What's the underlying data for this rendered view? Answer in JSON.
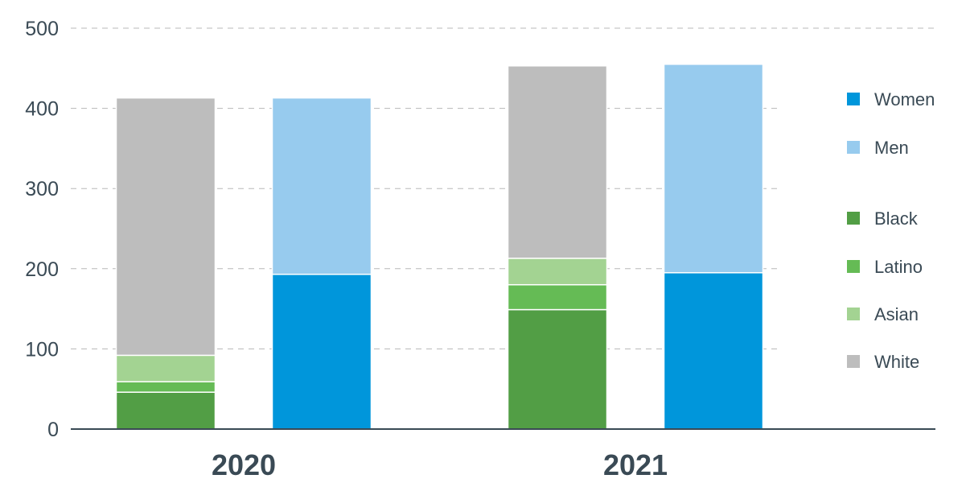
{
  "chart_data": {
    "type": "bar",
    "stacked": true,
    "categories": [
      "2020",
      "2021"
    ],
    "ylim": [
      0,
      500
    ],
    "yticks": [
      0,
      100,
      200,
      300,
      400,
      500
    ],
    "grid": true,
    "legend_position": "right",
    "groups": [
      {
        "stack": "race",
        "series": [
          {
            "name": "Black",
            "color": "#529e45",
            "values": [
              46,
              149
            ]
          },
          {
            "name": "Latino",
            "color": "#65bb55",
            "values": [
              13,
              31
            ]
          },
          {
            "name": "Asian",
            "color": "#a3d392",
            "values": [
              33,
              33
            ]
          },
          {
            "name": "White",
            "color": "#bdbdbd",
            "values": [
              321,
              240
            ]
          }
        ]
      },
      {
        "stack": "gender",
        "series": [
          {
            "name": "Women",
            "color": "#0096db",
            "values": [
              193,
              195
            ]
          },
          {
            "name": "Men",
            "color": "#97cbee",
            "values": [
              220,
              260
            ]
          }
        ]
      }
    ],
    "legend": [
      {
        "name": "Women",
        "color": "#0096db"
      },
      {
        "name": "Men",
        "color": "#97cbee"
      },
      {
        "name": "Black",
        "color": "#529e45"
      },
      {
        "name": "Latino",
        "color": "#65bb55"
      },
      {
        "name": "Asian",
        "color": "#a3d392"
      },
      {
        "name": "White",
        "color": "#bdbdbd"
      }
    ]
  }
}
